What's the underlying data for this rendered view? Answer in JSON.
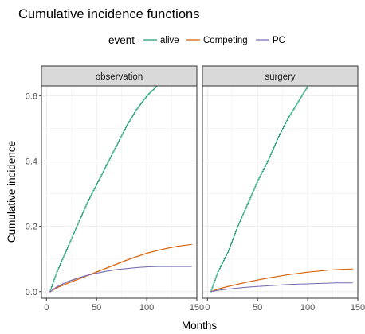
{
  "chart_data": {
    "type": "line",
    "title": "Cumulative incidence functions",
    "xlabel": "Months",
    "ylabel": "Cumulative incidence",
    "xlim": [
      -5,
      150
    ],
    "ylim": [
      -0.02,
      0.63
    ],
    "x_ticks": [
      0,
      50,
      100,
      150
    ],
    "y_ticks": [
      0.0,
      0.2,
      0.4,
      0.6
    ],
    "x_tick_labels": [
      "0",
      "50",
      "100",
      "150"
    ],
    "y_tick_labels": [
      "0.0",
      "0.2",
      "0.4",
      "0.6"
    ],
    "grid": true,
    "legend": {
      "title": "event",
      "position": "top",
      "entries": [
        {
          "name": "alive",
          "color": "#1b9e77"
        },
        {
          "name": "Competing",
          "color": "#d95f02"
        },
        {
          "name": "PC",
          "color": "#7570b3"
        }
      ]
    },
    "panels": [
      {
        "label": "observation",
        "series": [
          {
            "name": "alive",
            "x": [
              3,
              10,
              20,
              30,
              40,
              50,
              60,
              70,
              80,
              90,
              100,
              110
            ],
            "y": [
              0.0,
              0.06,
              0.13,
              0.2,
              0.27,
              0.33,
              0.39,
              0.45,
              0.51,
              0.56,
              0.6,
              0.63
            ]
          },
          {
            "name": "Competing",
            "x": [
              3,
              10,
              20,
              30,
              40,
              50,
              60,
              70,
              80,
              90,
              100,
              110,
              120,
              130,
              140,
              145
            ],
            "y": [
              0.0,
              0.012,
              0.025,
              0.037,
              0.049,
              0.061,
              0.073,
              0.085,
              0.097,
              0.108,
              0.118,
              0.126,
              0.133,
              0.139,
              0.143,
              0.145
            ]
          },
          {
            "name": "PC",
            "x": [
              3,
              10,
              20,
              30,
              40,
              50,
              60,
              70,
              80,
              90,
              100,
              110,
              120,
              130,
              140,
              145
            ],
            "y": [
              0.0,
              0.015,
              0.03,
              0.041,
              0.05,
              0.057,
              0.063,
              0.068,
              0.071,
              0.074,
              0.076,
              0.077,
              0.077,
              0.077,
              0.077,
              0.077
            ]
          }
        ]
      },
      {
        "label": "surgery",
        "series": [
          {
            "name": "alive",
            "x": [
              3,
              10,
              20,
              30,
              40,
              50,
              60,
              70,
              80,
              90,
              100
            ],
            "y": [
              0.0,
              0.06,
              0.12,
              0.2,
              0.27,
              0.34,
              0.4,
              0.47,
              0.53,
              0.58,
              0.63
            ]
          },
          {
            "name": "Competing",
            "x": [
              3,
              10,
              20,
              30,
              40,
              50,
              60,
              70,
              80,
              90,
              100,
              110,
              120,
              130,
              140,
              145
            ],
            "y": [
              0.0,
              0.008,
              0.016,
              0.023,
              0.03,
              0.036,
              0.042,
              0.047,
              0.052,
              0.056,
              0.06,
              0.063,
              0.066,
              0.068,
              0.069,
              0.07
            ]
          },
          {
            "name": "PC",
            "x": [
              3,
              10,
              20,
              30,
              40,
              50,
              60,
              70,
              80,
              90,
              100,
              110,
              120,
              130,
              140,
              145
            ],
            "y": [
              0.0,
              0.004,
              0.008,
              0.011,
              0.014,
              0.016,
              0.018,
              0.02,
              0.022,
              0.023,
              0.024,
              0.025,
              0.026,
              0.027,
              0.027,
              0.027
            ]
          }
        ]
      }
    ]
  }
}
